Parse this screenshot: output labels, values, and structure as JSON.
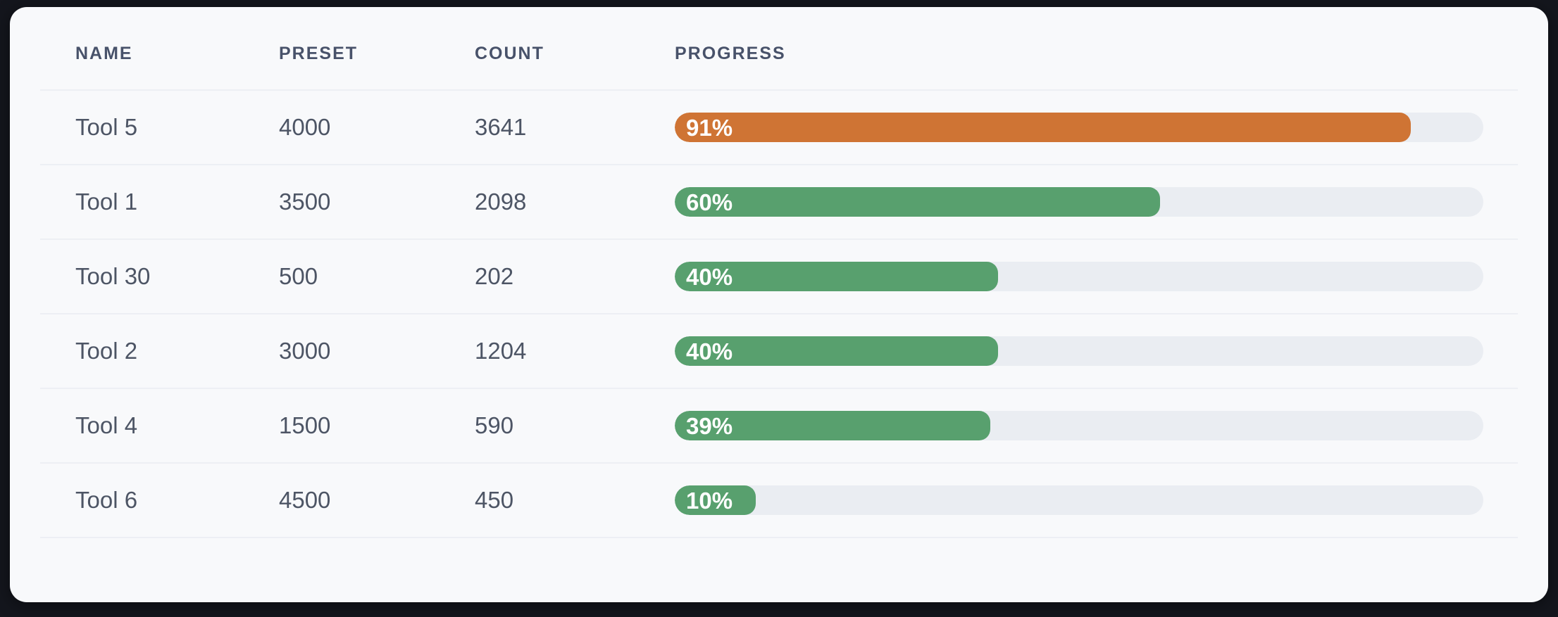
{
  "table": {
    "columns": [
      {
        "key": "name",
        "label": "NAME"
      },
      {
        "key": "preset",
        "label": "PRESET"
      },
      {
        "key": "count",
        "label": "COUNT"
      },
      {
        "key": "progress",
        "label": "PROGRESS"
      }
    ],
    "rows": [
      {
        "name": "Tool 5",
        "preset": "4000",
        "count": "3641",
        "progress_pct": 91,
        "progress_label": "91%",
        "bar_color": "#cf7434"
      },
      {
        "name": "Tool 1",
        "preset": "3500",
        "count": "2098",
        "progress_pct": 60,
        "progress_label": "60%",
        "bar_color": "#58a06e"
      },
      {
        "name": "Tool 30",
        "preset": "500",
        "count": "202",
        "progress_pct": 40,
        "progress_label": "40%",
        "bar_color": "#58a06e"
      },
      {
        "name": "Tool 2",
        "preset": "3000",
        "count": "1204",
        "progress_pct": 40,
        "progress_label": "40%",
        "bar_color": "#58a06e"
      },
      {
        "name": "Tool 4",
        "preset": "1500",
        "count": "590",
        "progress_pct": 39,
        "progress_label": "39%",
        "bar_color": "#58a06e"
      },
      {
        "name": "Tool 6",
        "preset": "4500",
        "count": "450",
        "progress_pct": 10,
        "progress_label": "10%",
        "bar_color": "#58a06e"
      }
    ],
    "colors": {
      "bar_orange": "#cf7434",
      "bar_green": "#58a06e",
      "bar_track": "#eaedf2",
      "card_background": "#f8f9fb",
      "page_background": "#14161d",
      "header_text": "#48526a",
      "cell_text": "#4d5565",
      "divider": "#edeff4"
    }
  }
}
